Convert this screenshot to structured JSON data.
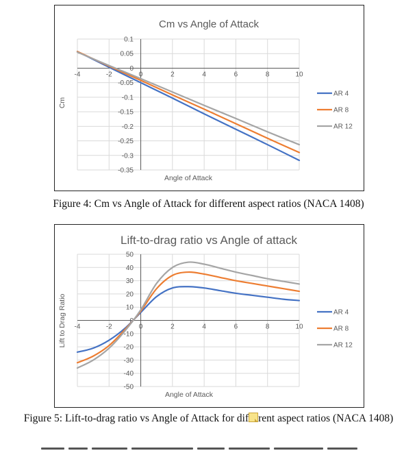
{
  "charts": [
    {
      "type": "line",
      "title": "Cm vs Angle of Attack",
      "xlabel": "Angle of Attack",
      "ylabel": "Cm",
      "xlim": [
        -4,
        10
      ],
      "ylim": [
        -0.35,
        0.1
      ],
      "xticks": [
        -4,
        -2,
        0,
        2,
        4,
        6,
        8,
        10
      ],
      "yticks": [
        0.1,
        0.05,
        0,
        -0.05,
        -0.1,
        -0.15,
        -0.2,
        -0.25,
        -0.3,
        -0.35
      ],
      "ytick_labels": [
        "0.1",
        "0.05",
        "0",
        "-0.05",
        "-0.1",
        "-0.15",
        "-0.2",
        "-0.25",
        "-0.3",
        "-0.35"
      ],
      "grid": true,
      "legend": "right",
      "x": [
        -4,
        -2,
        0,
        2,
        4,
        6,
        8,
        10
      ],
      "series": [
        {
          "name": "AR 4",
          "color": "#4472C4",
          "values": [
            0.057,
            0.003,
            -0.05,
            -0.103,
            -0.157,
            -0.21,
            -0.263,
            -0.317
          ]
        },
        {
          "name": "AR 8",
          "color": "#ED7D31",
          "values": [
            0.057,
            0.007,
            -0.042,
            -0.092,
            -0.141,
            -0.191,
            -0.241,
            -0.29
          ]
        },
        {
          "name": "AR 12",
          "color": "#A5A5A5",
          "values": [
            0.055,
            0.009,
            -0.036,
            -0.082,
            -0.128,
            -0.173,
            -0.219,
            -0.263
          ]
        }
      ]
    },
    {
      "type": "line",
      "title": "Lift-to-drag ratio vs Angle of attack",
      "xlabel": "Angle of Attack",
      "ylabel": "Lift to Drag Ratio",
      "xlim": [
        -4,
        10
      ],
      "ylim": [
        -50,
        50
      ],
      "xticks": [
        -4,
        -2,
        0,
        2,
        4,
        6,
        8,
        10
      ],
      "yticks": [
        50,
        40,
        30,
        20,
        10,
        0,
        -10,
        -20,
        -30,
        -40,
        -50
      ],
      "ytick_labels": [
        "50",
        "40",
        "30",
        "20",
        "10",
        "0",
        "-10",
        "-20",
        "-30",
        "-40",
        "-50"
      ],
      "grid": true,
      "legend": "right",
      "x": [
        -4,
        -3,
        -2,
        -1,
        0,
        1,
        2,
        3,
        4,
        5,
        6,
        7,
        8,
        9,
        10
      ],
      "series": [
        {
          "name": "AR 4",
          "color": "#4472C4",
          "values": [
            -24,
            -21,
            -15,
            -6,
            6,
            18,
            24.5,
            25.5,
            24.5,
            22.5,
            20.5,
            19,
            17.5,
            16,
            15
          ]
        },
        {
          "name": "AR 8",
          "color": "#ED7D31",
          "values": [
            -32,
            -27,
            -19,
            -7,
            7,
            24,
            34,
            36.5,
            35,
            32.5,
            30,
            28,
            26,
            24,
            22
          ]
        },
        {
          "name": "AR 12",
          "color": "#A5A5A5",
          "values": [
            -36,
            -30,
            -21,
            -8,
            8,
            28,
            40,
            44,
            42.5,
            39.5,
            36.5,
            34,
            31.5,
            29.5,
            27.5
          ]
        }
      ]
    }
  ],
  "captions": [
    "Figure 4: Cm vs Angle of Attack for different aspect ratios (NACA 1408)",
    "Figure 5: Lift-to-drag ratio vs Angle of Attack for dif",
    "rent aspect ratios (NACA 1408)"
  ],
  "colors": {
    "grid": "#D9D9D9",
    "axis": "#595959",
    "text": "#595959"
  }
}
